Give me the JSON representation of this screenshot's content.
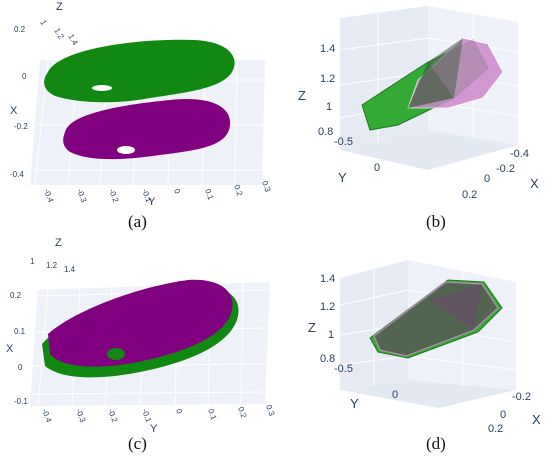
{
  "panels": [
    {
      "id": "a",
      "caption": "(a)",
      "z_label": "Z",
      "x_label": "X",
      "y_label": "Y",
      "z_ticks": [
        "1",
        "1.2",
        "1.4"
      ],
      "x_ticks": [
        "0.2",
        "0",
        "-0.2",
        "-0.4"
      ],
      "y_ticks": [
        "-0.4",
        "-0.3",
        "-0.2",
        "-0.1",
        "0",
        "0.1",
        "0.2",
        "0.3"
      ],
      "series_colors": [
        "#118811",
        "#800080"
      ]
    },
    {
      "id": "b",
      "caption": "(b)",
      "z_label": "Z",
      "x_label": "X",
      "y_label": "Y",
      "z_ticks": [
        "1.4",
        "1.2",
        "1",
        "0.8"
      ],
      "y_ticks": [
        "-0.5",
        "0"
      ],
      "x_ticks": [
        "-0.4",
        "-0.2",
        "0",
        "0.2"
      ],
      "series_colors": [
        "#33aa33",
        "#cc88cc"
      ]
    },
    {
      "id": "c",
      "caption": "(c)",
      "z_label": "Z",
      "x_label": "X",
      "y_label": "Y",
      "z_ticks": [
        "1",
        "1.2",
        "1.4"
      ],
      "x_ticks": [
        "0.2",
        "0.1",
        "0",
        "-0.1"
      ],
      "y_ticks": [
        "-0.4",
        "-0.3",
        "-0.2",
        "-0.1",
        "0",
        "0.1",
        "0.2",
        "0.3"
      ],
      "series_colors": [
        "#118811",
        "#800080"
      ]
    },
    {
      "id": "d",
      "caption": "(d)",
      "z_label": "Z",
      "x_label": "X",
      "y_label": "Y",
      "z_ticks": [
        "1.4",
        "1.2",
        "1",
        "0.8"
      ],
      "y_ticks": [
        "-0.5",
        "0"
      ],
      "x_ticks": [
        "-0.2",
        "0",
        "0.2"
      ],
      "series_colors": [
        "#33aa33",
        "#cc88cc"
      ]
    }
  ]
}
